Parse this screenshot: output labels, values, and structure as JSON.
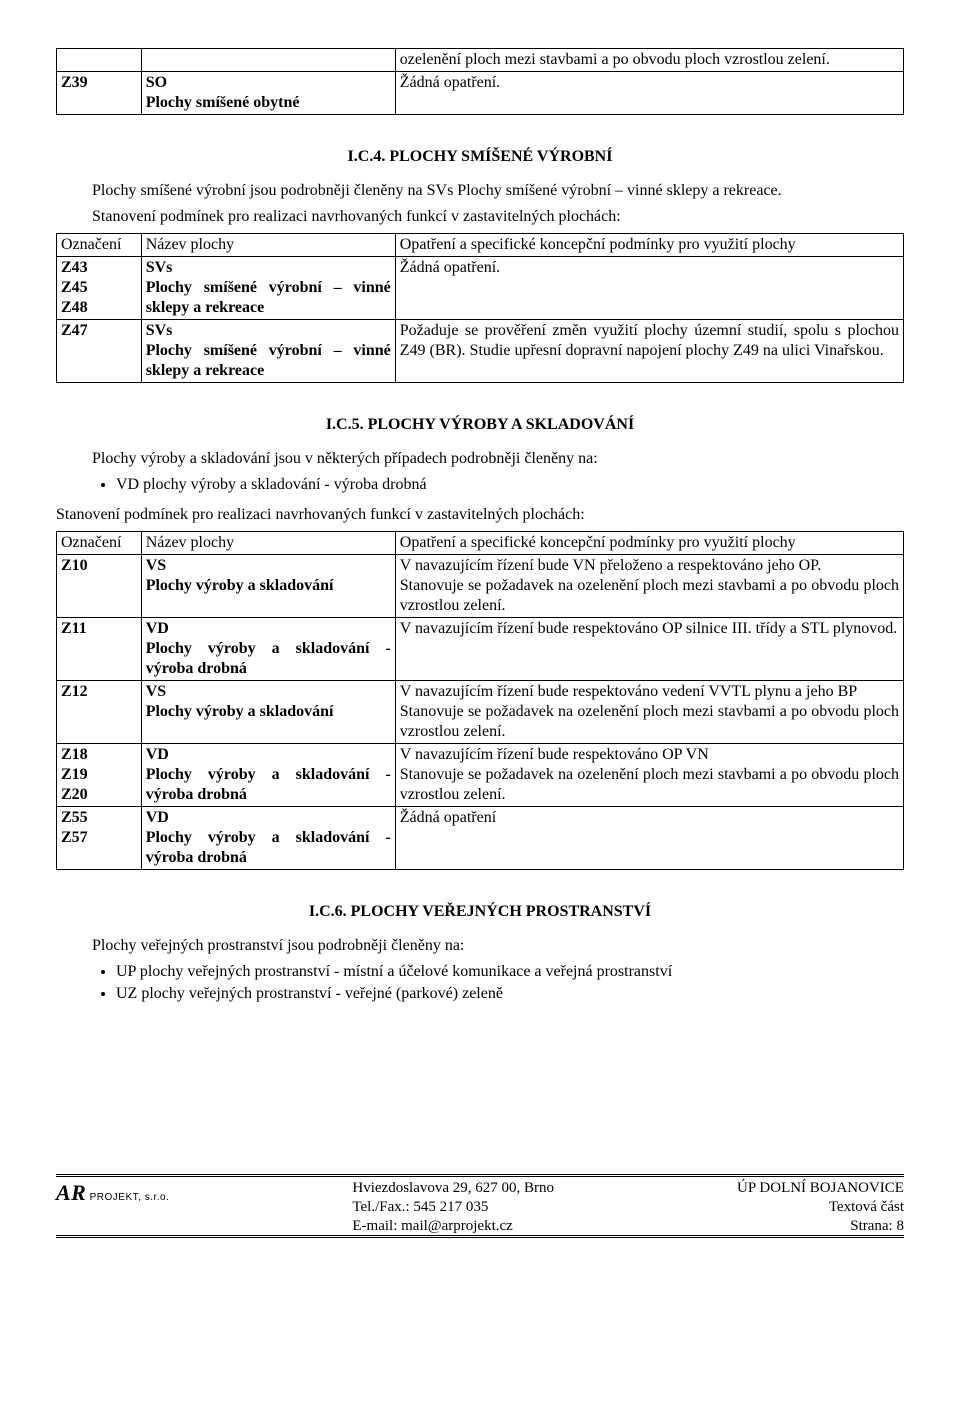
{
  "table1": {
    "r1_c3": "ozelenění ploch mezi stavbami a po obvodu ploch vzrostlou zelení.",
    "r2_c1": "Z39",
    "r2_c2a": "SO",
    "r2_c2b": "Plochy smíšené obytné",
    "r2_c3": "Žádná opatření."
  },
  "sec4": {
    "heading": "I.C.4. PLOCHY SMÍŠENÉ VÝROBNÍ",
    "intro": "Plochy smíšené výrobní jsou podrobněji členěny na SVs Plochy smíšené výrobní – vinné sklepy a rekreace.",
    "cond": "Stanovení podmínek pro realizaci navrhovaných funkcí v zastavitelných plochách:",
    "h_a": "Označení",
    "h_b": "Název plochy",
    "h_c": "Opatření a specifické koncepční podmínky pro využití plochy",
    "r1_a1": "Z43",
    "r1_a2": "Z45",
    "r1_a3": "Z48",
    "r1_b1": "SVs",
    "r1_b2": "Plochy smíšené výrobní – vinné sklepy a rekreace",
    "r1_c": "Žádná opatření.",
    "r2_a": "Z47",
    "r2_b1": "SVs",
    "r2_b2": "Plochy smíšené výrobní – vinné sklepy a rekreace",
    "r2_c": "Požaduje se prověření změn využití plochy územní studií, spolu s plochou Z49 (BR). Studie upřesní dopravní napojení plochy Z49 na ulici Vinařskou."
  },
  "sec5": {
    "heading": "I.C.5. PLOCHY VÝROBY A SKLADOVÁNÍ",
    "intro": "Plochy výroby a skladování jsou v některých případech podrobněji členěny na:",
    "bullet1": "VD plochy výroby a skladování - výroba drobná",
    "cond": "Stanovení podmínek pro realizaci navrhovaných funkcí v zastavitelných plochách:",
    "h_a": "Označení",
    "h_b": "Název plochy",
    "h_c": "Opatření a specifické koncepční podmínky pro využití plochy",
    "r1_a": "Z10",
    "r1_b1": "VS",
    "r1_b2": "Plochy výroby a skladování",
    "r1_c": "V navazujícím řízení bude VN přeloženo a respektováno jeho OP.\nStanovuje se požadavek na ozelenění ploch mezi stavbami a po obvodu ploch vzrostlou zelení.",
    "r2_a": "Z11",
    "r2_b1": "VD",
    "r2_b2": "Plochy výroby a skladování - výroba drobná",
    "r2_c": "V navazujícím řízení bude  respektováno OP silnice III. třídy a STL plynovod.",
    "r3_a": "Z12",
    "r3_b1": "VS",
    "r3_b2": "Plochy výroby a skladování",
    "r3_c": "V navazujícím řízení bude  respektováno vedení VVTL plynu a jeho BP\nStanovuje se požadavek na ozelenění ploch mezi stavbami a po obvodu ploch vzrostlou zelení.",
    "r4_a1": "Z18",
    "r4_a2": "Z19",
    "r4_a3": "Z20",
    "r4_b1": "VD",
    "r4_b2": "Plochy výroby a skladování - výroba drobná",
    "r4_c": "V navazujícím řízení bude respektováno OP VN\nStanovuje se požadavek na ozelenění ploch mezi stavbami a po obvodu ploch vzrostlou zelení.",
    "r5_a1": "Z55",
    "r5_a2": "Z57",
    "r5_b1": "VD",
    "r5_b2": "Plochy výroby a skladování - výroba drobná",
    "r5_c": "Žádná opatření"
  },
  "sec6": {
    "heading": "I.C.6. PLOCHY VEŘEJNÝCH PROSTRANSTVÍ",
    "intro": "Plochy veřejných prostranství jsou podrobněji členěny na:",
    "bullet1": "UP plochy veřejných prostranství - místní a účelové komunikace a veřejná prostranství",
    "bullet2": "UZ plochy veřejných prostranství - veřejné (parkové) zeleně"
  },
  "footer": {
    "logo_mark": "AR",
    "logo_text": "PROJEKT, s.r.o.",
    "addr": "Hviezdoslavova 29, 627 00,  Brno",
    "tel": "Tel./Fax.: 545 217 035",
    "email": "E-mail: mail@arprojekt.cz",
    "doc": "ÚP DOLNÍ BOJANOVICE",
    "part": "Textová část",
    "page": "Strana: 8"
  }
}
